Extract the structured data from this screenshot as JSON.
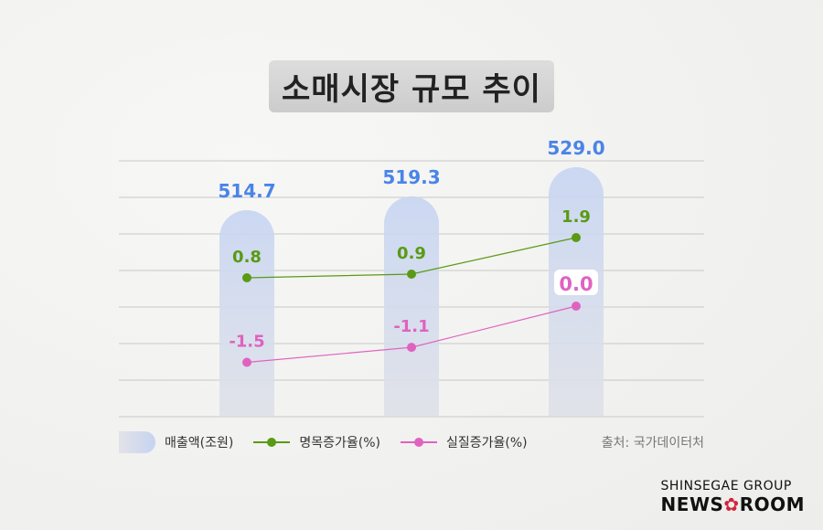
{
  "title": "소매시장 규모 추이",
  "chart_data": {
    "type": "bar+line",
    "title": "소매시장 규모 추이",
    "categories": [
      "",
      "",
      ""
    ],
    "series": [
      {
        "name": "매출액(조원)",
        "type": "bar",
        "color": "#c9d5f0",
        "label_color": "#4a84e8",
        "values": [
          514.7,
          519.3,
          529.0
        ],
        "labels": [
          "514.7",
          "519.3",
          "529.0"
        ]
      },
      {
        "name": "명목증가율(%)",
        "type": "line",
        "color": "#5a9a14",
        "values": [
          0.8,
          0.9,
          1.9
        ],
        "labels": [
          "0.8",
          "0.9",
          "1.9"
        ]
      },
      {
        "name": "실질증가율(%)",
        "type": "line",
        "color": "#e062c0",
        "values": [
          -1.5,
          -1.1,
          0.0
        ],
        "labels": [
          "-1.5",
          "-1.1",
          "0.0"
        ]
      }
    ],
    "grid": true,
    "legend": "bottom"
  },
  "source": "출처: 국가데이터처",
  "logo": {
    "group": "SHINSEGAE GROUP",
    "news": "NEWS",
    "room": "ROOM",
    "flower": "✿"
  }
}
